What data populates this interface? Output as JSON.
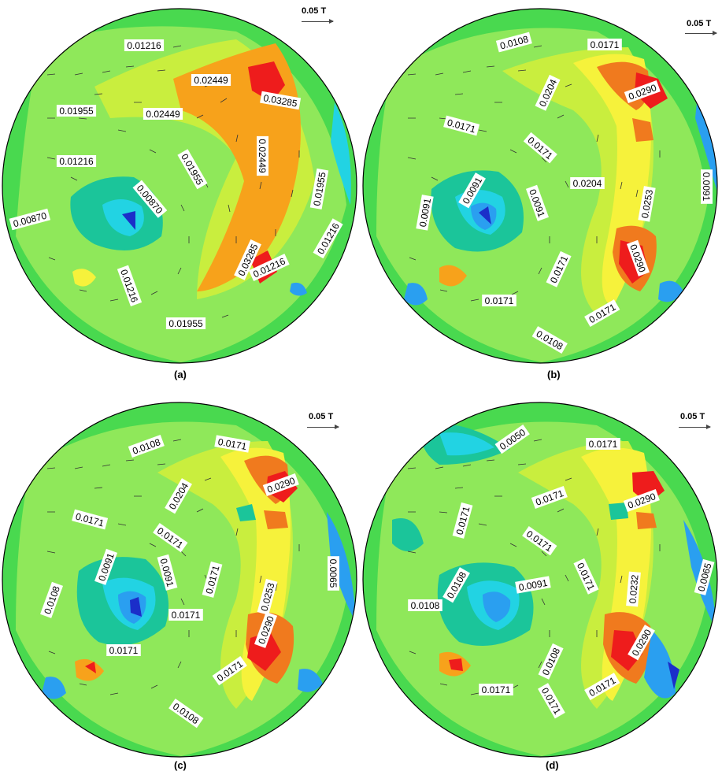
{
  "scale_label": "0.05 T",
  "colors": {
    "green": "#49d94f",
    "lightgreen": "#8fe85a",
    "yellowgreen": "#c9ee3e",
    "yellow": "#f6f23b",
    "orange": "#f7a21b",
    "darkorange": "#f07a1e",
    "red": "#ee1c1c",
    "teal": "#1bc59a",
    "cyan": "#22d3e3",
    "blue": "#2a9ff0",
    "navy": "#1b2ec9"
  },
  "panels": [
    {
      "caption": "(a)",
      "contour_labels": [
        "0.01216",
        "0.02449",
        "0.03285",
        "0.01955",
        "0.02449",
        "0.01216",
        "0.01955",
        "0.00870",
        "0.00870",
        "0.02449",
        "0.01955",
        "0.01216",
        "0.01955",
        "0.03285",
        "0.01216",
        "0.01216"
      ]
    },
    {
      "caption": "(b)",
      "contour_labels": [
        "0.0108",
        "0.0171",
        "0.0204",
        "0.0290",
        "0.0171",
        "0.0171",
        "0.0204",
        "0.0091",
        "0.0091",
        "0.0091",
        "0.0253",
        "0.0091",
        "0.0290",
        "0.0171",
        "0.0171",
        "0.0171",
        "0.0108"
      ]
    },
    {
      "caption": "(c)",
      "contour_labels": [
        "0.0108",
        "0.0171",
        "0.0204",
        "0.0290",
        "0.0171",
        "0.0171",
        "0.0171",
        "0.0091",
        "0.0091",
        "0.0253",
        "0.0065",
        "0.0108",
        "0.0171",
        "0.0290",
        "0.0171",
        "0.0171",
        "0.0108"
      ]
    },
    {
      "caption": "(d)",
      "contour_labels": [
        "0.0050",
        "0.0171",
        "0.0290",
        "0.0171",
        "0.0171",
        "0.0171",
        "0.0171",
        "0.0108",
        "0.0091",
        "0.0232",
        "0.0065",
        "0.0108",
        "0.0108",
        "0.0290",
        "0.0171",
        "0.0171",
        "0.0171"
      ]
    }
  ]
}
